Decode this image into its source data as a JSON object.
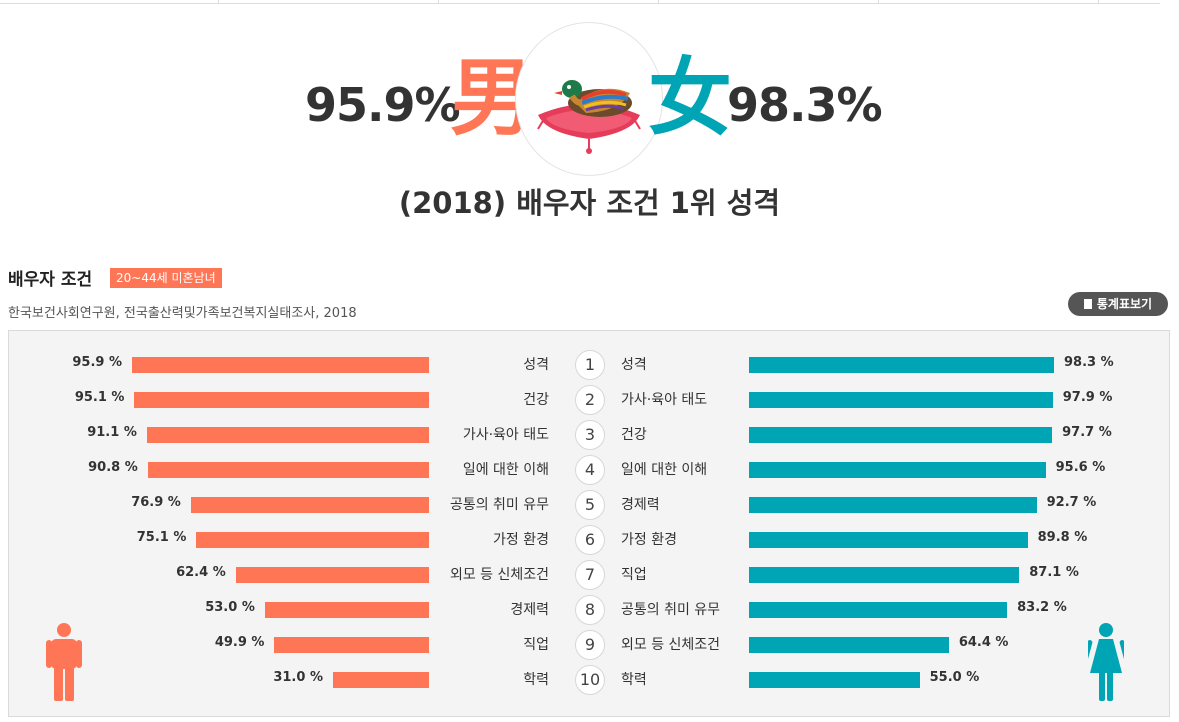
{
  "hero": {
    "male_pct": "95.9%",
    "male_char": "男",
    "female_char": "女",
    "female_pct": "98.3%",
    "title": "(2018) 배우자 조건 1위 성격"
  },
  "section": {
    "title": "배우자 조건",
    "badge": "20~44세 미혼남녀",
    "source": "한국보건사회연구원, 전국출산력및가족보건복지실태조사, 2018",
    "stats_button": "통계표보기"
  },
  "colors": {
    "male": "#ff7656",
    "female": "#00a5b5",
    "text": "#333333",
    "panel": "#f4f4f4"
  },
  "chart_data": {
    "type": "bar",
    "title": "",
    "unit": "%",
    "ranks": [
      "1",
      "2",
      "3",
      "4",
      "5",
      "6",
      "7",
      "8",
      "9",
      "10"
    ],
    "series": [
      {
        "name": "男",
        "categories": [
          "성격",
          "건강",
          "가사·육아 태도",
          "일에 대한 이해",
          "공통의 취미 유무",
          "가정 환경",
          "외모 등 신체조건",
          "경제력",
          "직업",
          "학력"
        ],
        "values": [
          95.9,
          95.1,
          91.1,
          90.8,
          76.9,
          75.1,
          62.4,
          53.0,
          49.9,
          31.0
        ],
        "labels": [
          "95.9 %",
          "95.1 %",
          "91.1 %",
          "90.8 %",
          "76.9 %",
          "75.1 %",
          "62.4 %",
          "53.0 %",
          "49.9 %",
          "31.0 %"
        ]
      },
      {
        "name": "女",
        "categories": [
          "성격",
          "가사·육아 태도",
          "건강",
          "일에 대한 이해",
          "경제력",
          "가정 환경",
          "직업",
          "공통의 취미 유무",
          "외모 등 신체조건",
          "학력"
        ],
        "values": [
          98.3,
          97.9,
          97.7,
          95.6,
          92.7,
          89.8,
          87.1,
          83.2,
          64.4,
          55.0
        ],
        "labels": [
          "98.3 %",
          "97.9 %",
          "97.7 %",
          "95.6 %",
          "92.7 %",
          "89.8 %",
          "87.1 %",
          "83.2 %",
          "64.4 %",
          "55.0 %"
        ]
      }
    ],
    "ylim": [
      0,
      100
    ]
  }
}
